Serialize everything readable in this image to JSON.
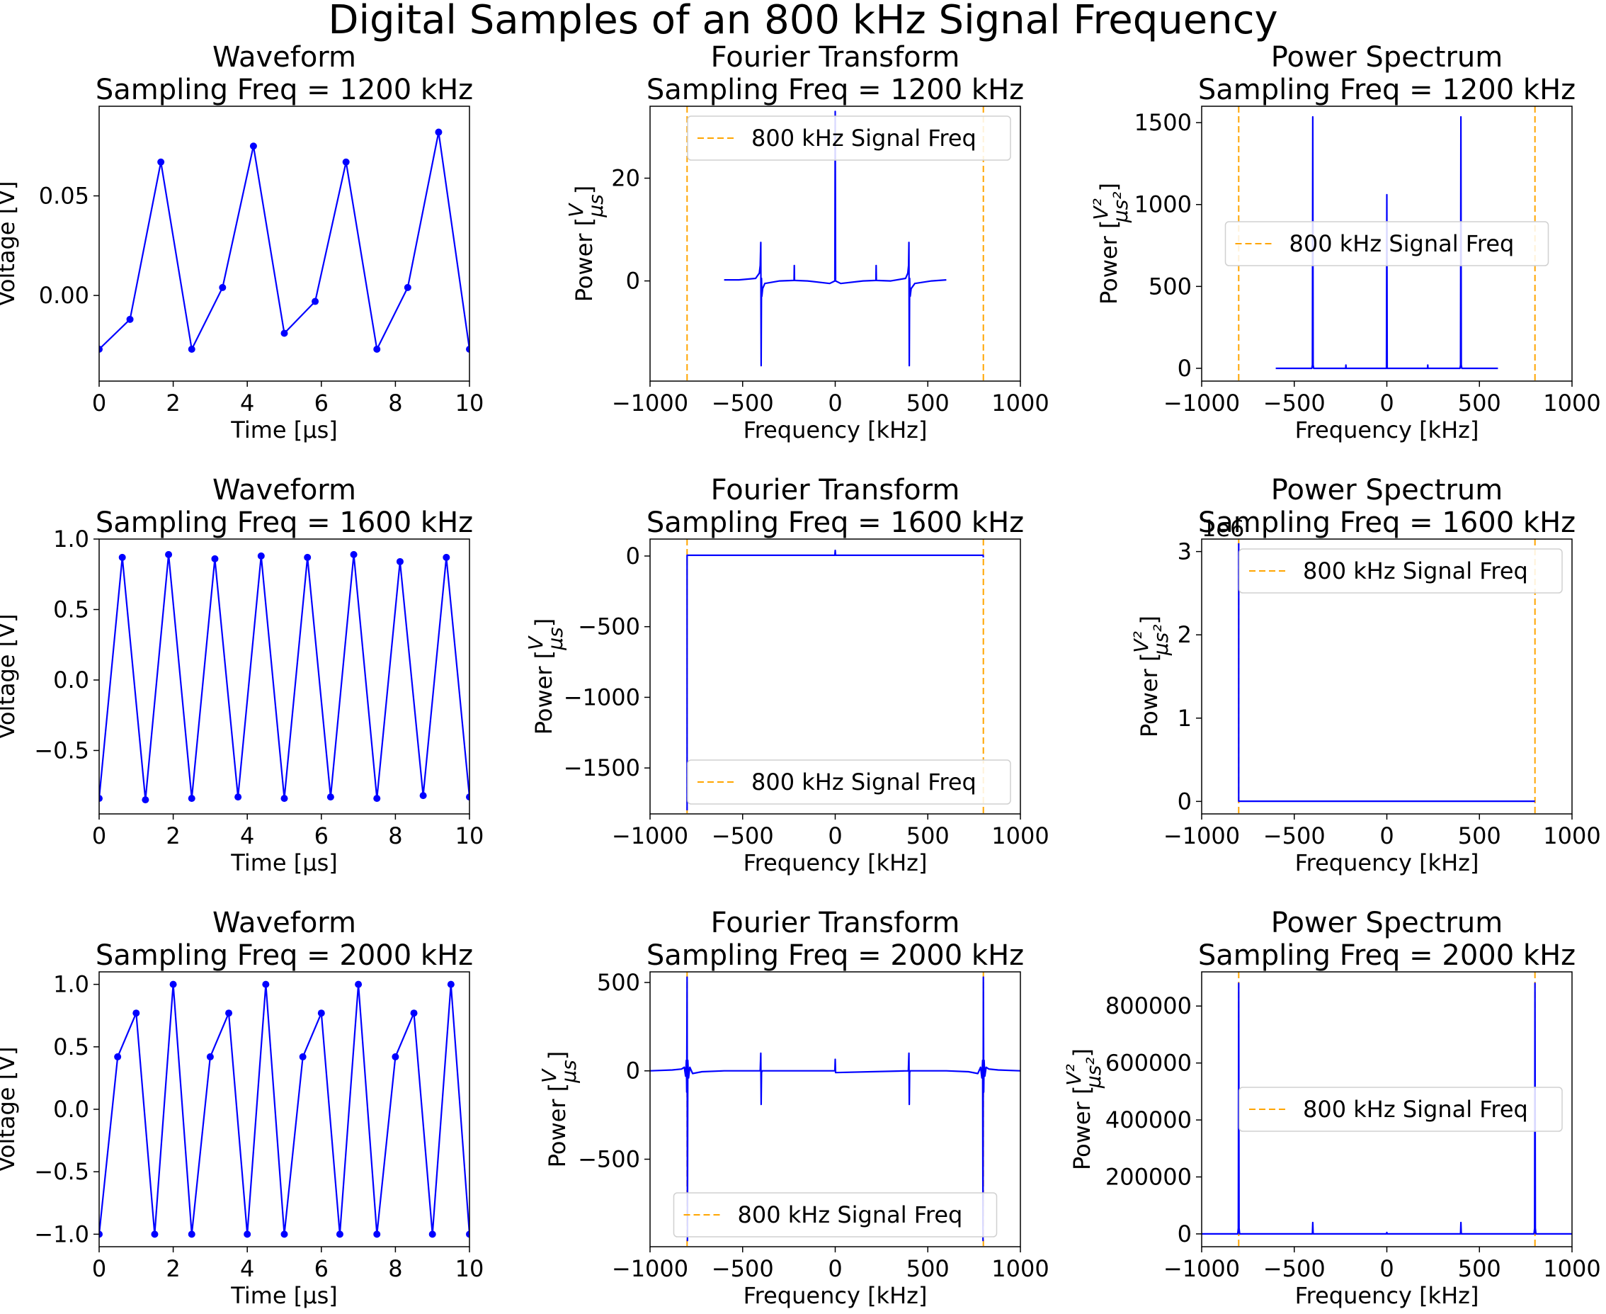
{
  "figure": {
    "suptitle": "Digital Samples of an 800 kHz Signal Frequency"
  },
  "colors": {
    "signal": "#0000ff",
    "marker": "#ffa500",
    "axis": "#000000"
  },
  "chart_data": [
    {
      "type": "line",
      "title": "Waveform\nSampling Freq = 1200 kHz",
      "xlabel": "Time [μs]",
      "ylabel": "Voltage [V]",
      "xlim": [
        0,
        10
      ],
      "ylim": [
        -0.043,
        0.095
      ],
      "xticks": [
        0,
        2,
        4,
        6,
        8,
        10
      ],
      "xticklabels": [
        "0",
        "2",
        "4",
        "6",
        "8",
        "10"
      ],
      "yticks": [
        0,
        0.05
      ],
      "yticklabels": [
        "0.00",
        "0.05"
      ],
      "series": [
        {
          "style": "line-marker",
          "x": [
            0,
            0.833,
            1.667,
            2.5,
            3.333,
            4.167,
            5.0,
            5.833,
            6.667,
            7.5,
            8.333,
            9.167,
            10.0
          ],
          "y": [
            -0.027,
            -0.012,
            0.067,
            -0.027,
            0.004,
            0.075,
            -0.019,
            -0.003,
            0.067,
            -0.027,
            0.004,
            0.082,
            -0.027
          ]
        }
      ]
    },
    {
      "type": "line",
      "title": "Fourier Transform\nSampling Freq = 1200 kHz",
      "xlabel": "Frequency [kHz]",
      "ylabel": "Power [V/μs]",
      "xlim": [
        -1000,
        1000
      ],
      "ylim": [
        -19.5,
        34
      ],
      "xticks": [
        -1000,
        -500,
        0,
        500,
        1000
      ],
      "xticklabels": [
        "−1000",
        "−500",
        "0",
        "500",
        "1000"
      ],
      "yticks": [
        0,
        20
      ],
      "yticklabels": [
        "0",
        "20"
      ],
      "series": [
        {
          "style": "line",
          "x": [
            -600,
            -520,
            -430,
            -410,
            -405,
            -402,
            -400,
            -398,
            -396,
            -392,
            -380,
            -300,
            -222,
            -221,
            -220,
            -150,
            -30,
            -2,
            0,
            2,
            30,
            150,
            220,
            221,
            222,
            300,
            380,
            392,
            396,
            398,
            400,
            402,
            405,
            410,
            430,
            520,
            600
          ],
          "y": [
            0.2,
            0.2,
            0.5,
            1.5,
            3,
            7.5,
            -16.5,
            0.5,
            -3,
            -1.5,
            -0.5,
            0,
            0.1,
            3,
            0.1,
            0,
            -0.5,
            0,
            33,
            0,
            -0.5,
            0,
            0.1,
            3,
            0.1,
            0,
            0.5,
            1.5,
            3,
            7.5,
            -16.5,
            0.5,
            -3,
            -1.5,
            -0.5,
            0,
            0.2
          ]
        }
      ],
      "vlines": [
        -800,
        800
      ],
      "legend": {
        "label": "800 kHz Signal Freq",
        "loc": "upper right"
      }
    },
    {
      "type": "line",
      "title": "Power Spectrum\nSampling Freq = 1200 kHz",
      "xlabel": "Frequency [kHz]",
      "ylabel": "Power [V²/μs²]",
      "xlim": [
        -1000,
        1000
      ],
      "ylim": [
        -78,
        1600
      ],
      "xticks": [
        -1000,
        -500,
        0,
        500,
        1000
      ],
      "xticklabels": [
        "−1000",
        "−500",
        "0",
        "500",
        "1000"
      ],
      "yticks": [
        0,
        500,
        1000,
        1500
      ],
      "yticklabels": [
        "0",
        "500",
        "1000",
        "1500"
      ],
      "series": [
        {
          "style": "line",
          "x": [
            -600,
            -405,
            -402,
            -400,
            -398,
            -395,
            -222,
            -221,
            -220,
            -2,
            0,
            2,
            220,
            221,
            222,
            395,
            398,
            400,
            402,
            405,
            600
          ],
          "y": [
            0,
            0,
            20,
            1535,
            20,
            0,
            0,
            20,
            0,
            0,
            1060,
            0,
            0,
            20,
            0,
            0,
            20,
            1535,
            20,
            0,
            0
          ]
        }
      ],
      "vlines": [
        -800,
        800
      ],
      "legend": {
        "label": "800 kHz Signal Freq",
        "loc": "center"
      }
    },
    {
      "type": "line",
      "title": "Waveform\nSampling Freq = 1600 kHz",
      "xlabel": "Time [μs]",
      "ylabel": "Voltage [V]",
      "xlim": [
        0,
        10
      ],
      "ylim": [
        -0.95,
        1.0
      ],
      "xticks": [
        0,
        2,
        4,
        6,
        8,
        10
      ],
      "xticklabels": [
        "0",
        "2",
        "4",
        "6",
        "8",
        "10"
      ],
      "yticks": [
        -0.5,
        0,
        0.5,
        1.0
      ],
      "yticklabels": [
        "−0.5",
        "0.0",
        "0.5",
        "1.0"
      ],
      "series": [
        {
          "style": "line-marker",
          "x": [
            0,
            0.625,
            1.25,
            1.875,
            2.5,
            3.125,
            3.75,
            4.375,
            5.0,
            5.625,
            6.25,
            6.875,
            7.5,
            8.125,
            8.75,
            9.375,
            10.0
          ],
          "y": [
            -0.84,
            0.87,
            -0.85,
            0.89,
            -0.84,
            0.86,
            -0.83,
            0.88,
            -0.84,
            0.87,
            -0.83,
            0.89,
            -0.84,
            0.84,
            -0.82,
            0.87,
            -0.83
          ]
        }
      ]
    },
    {
      "type": "line",
      "title": "Fourier Transform\nSampling Freq = 1600 kHz",
      "xlabel": "Frequency [kHz]",
      "ylabel": "Power [V/μs]",
      "xlim": [
        -1000,
        1000
      ],
      "ylim": [
        -1825,
        120
      ],
      "xticks": [
        -1000,
        -500,
        0,
        500,
        1000
      ],
      "xticklabels": [
        "−1000",
        "−500",
        "0",
        "500",
        "1000"
      ],
      "yticks": [
        -1500,
        -1000,
        -500,
        0
      ],
      "yticklabels": [
        "−1500",
        "−1000",
        "−500",
        "0"
      ],
      "series": [
        {
          "style": "line",
          "x": [
            -800,
            -800,
            -799,
            -700,
            -2,
            0,
            2,
            700,
            799,
            800
          ],
          "y": [
            -1800,
            5,
            5,
            5,
            5,
            40,
            5,
            5,
            5,
            -10
          ]
        }
      ],
      "vlines": [
        -800,
        800
      ],
      "legend": {
        "label": "800 kHz Signal Freq",
        "loc": "lower right"
      }
    },
    {
      "type": "line",
      "title": "Power Spectrum\nSampling Freq = 1600 kHz",
      "xlabel": "Frequency [kHz]",
      "ylabel": "Power [V²/μs²]",
      "xlim": [
        -1000,
        1000
      ],
      "ylim": [
        -150000,
        3150000
      ],
      "xticks": [
        -1000,
        -500,
        0,
        500,
        1000
      ],
      "xticklabels": [
        "−1000",
        "−500",
        "0",
        "500",
        "1000"
      ],
      "yticks": [
        0,
        1000000,
        2000000,
        3000000
      ],
      "yticklabels": [
        "0",
        "1",
        "2",
        "3"
      ],
      "offset_text": "1e6",
      "series": [
        {
          "style": "line",
          "x": [
            -800,
            -800,
            -799,
            0,
            799,
            800
          ],
          "y": [
            3100000,
            2000,
            2000,
            2000,
            2000,
            2000
          ]
        }
      ],
      "vlines": [
        -800,
        800
      ],
      "legend": {
        "label": "800 kHz Signal Freq",
        "loc": "upper right"
      }
    },
    {
      "type": "line",
      "title": "Waveform\nSampling Freq = 2000 kHz",
      "xlabel": "Time [μs]",
      "ylabel": "Voltage [V]",
      "xlim": [
        0,
        10
      ],
      "ylim": [
        -1.1,
        1.1
      ],
      "xticks": [
        0,
        2,
        4,
        6,
        8,
        10
      ],
      "xticklabels": [
        "0",
        "2",
        "4",
        "6",
        "8",
        "10"
      ],
      "yticks": [
        -1.0,
        -0.5,
        0,
        0.5,
        1.0
      ],
      "yticklabels": [
        "−1.0",
        "−0.5",
        "0.0",
        "0.5",
        "1.0"
      ],
      "series": [
        {
          "style": "line-marker",
          "x": [
            0,
            0.5,
            1.0,
            1.5,
            2.0,
            2.5,
            3.0,
            3.5,
            4.0,
            4.5,
            5.0,
            5.5,
            6.0,
            6.5,
            7.0,
            7.5,
            8.0,
            8.5,
            9.0,
            9.5,
            10.0
          ],
          "y": [
            -1.0,
            0.42,
            0.77,
            -1.0,
            1.0,
            -1.0,
            0.42,
            0.77,
            -1.0,
            1.0,
            -1.0,
            0.42,
            0.77,
            -1.0,
            1.0,
            -1.0,
            0.42,
            0.77,
            -1.0,
            1.0,
            -1.0
          ]
        }
      ]
    },
    {
      "type": "line",
      "title": "Fourier Transform\nSampling Freq = 2000 kHz",
      "xlabel": "Frequency [kHz]",
      "ylabel": "Power [V/μs]",
      "xlim": [
        -1000,
        1000
      ],
      "ylim": [
        -995,
        560
      ],
      "xticks": [
        -1000,
        -500,
        0,
        500,
        1000
      ],
      "xticklabels": [
        "−1000",
        "−500",
        "0",
        "500",
        "1000"
      ],
      "yticks": [
        -500,
        0,
        500
      ],
      "yticklabels": [
        "−500",
        "0",
        "500"
      ],
      "series": [
        {
          "style": "line",
          "x": [
            -1000,
            -880,
            -830,
            -815,
            -808,
            -804,
            -802,
            -800,
            -798,
            -796,
            -792,
            -785,
            -770,
            -720,
            -600,
            -405,
            -402,
            -400,
            -398,
            -395,
            -2,
            0,
            2,
            395,
            398,
            400,
            402,
            405,
            600,
            720,
            770,
            785,
            792,
            796,
            798,
            800,
            802,
            804,
            808,
            815,
            830,
            880,
            1000
          ],
          "y": [
            0,
            5,
            10,
            20,
            -30,
            60,
            -120,
            530,
            -960,
            60,
            -40,
            20,
            -15,
            -5,
            0,
            0,
            100,
            -190,
            -10,
            0,
            0,
            65,
            -10,
            0,
            100,
            -190,
            -10,
            0,
            0,
            -5,
            -15,
            20,
            -40,
            60,
            -960,
            530,
            -120,
            60,
            -30,
            20,
            10,
            5,
            0
          ]
        }
      ],
      "vlines": [
        -800,
        800
      ],
      "legend": {
        "label": "800 kHz Signal Freq",
        "loc": "lower center"
      }
    },
    {
      "type": "line",
      "title": "Power Spectrum\nSampling Freq = 2000 kHz",
      "xlabel": "Frequency [kHz]",
      "ylabel": "Power [V²/μs²]",
      "xlim": [
        -1000,
        1000
      ],
      "ylim": [
        -45000,
        920000
      ],
      "xticks": [
        -1000,
        -500,
        0,
        500,
        1000
      ],
      "xticklabels": [
        "−1000",
        "−500",
        "0",
        "500",
        "1000"
      ],
      "yticks": [
        0,
        200000,
        400000,
        600000,
        800000
      ],
      "yticklabels": [
        "0",
        "200000",
        "400000",
        "600000",
        "800000"
      ],
      "series": [
        {
          "style": "line",
          "x": [
            -1000,
            -805,
            -802,
            -800,
            -798,
            -795,
            -402,
            -400,
            -398,
            -2,
            0,
            2,
            398,
            400,
            402,
            795,
            798,
            800,
            802,
            805,
            1000
          ],
          "y": [
            0,
            0,
            20000,
            880000,
            20000,
            0,
            0,
            40000,
            0,
            0,
            5000,
            0,
            0,
            40000,
            0,
            0,
            20000,
            880000,
            20000,
            0,
            0
          ]
        }
      ],
      "vlines": [
        -800,
        800
      ],
      "legend": {
        "label": "800 kHz Signal Freq",
        "loc": "center right"
      }
    }
  ]
}
